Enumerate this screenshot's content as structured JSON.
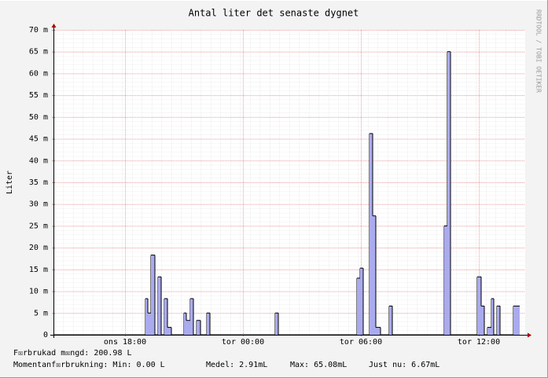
{
  "chart_data": {
    "type": "area",
    "title": "Antal liter det senaste dygnet",
    "y_label": "Liter",
    "watermark": "RRDTOOL / TOBI OETIKER",
    "step": true,
    "color": "#aaaaee",
    "line_color": "#000000",
    "grid": true,
    "xlim": [
      14.36,
      38.36
    ],
    "xticks": [
      {
        "value": 18,
        "label": "ons 18:00"
      },
      {
        "value": 24,
        "label": "tor 00:00"
      },
      {
        "value": 30,
        "label": "tor 06:00"
      },
      {
        "value": 36,
        "label": "tor 12:00"
      }
    ],
    "ylim": [
      0,
      70
    ],
    "yticks": [
      0,
      {
        "value": 5,
        "label": "5 m"
      },
      {
        "value": 10,
        "label": "10 m"
      },
      {
        "value": 15,
        "label": "15 m"
      },
      {
        "value": 20,
        "label": "20 m"
      },
      {
        "value": 25,
        "label": "25 m"
      },
      {
        "value": 30,
        "label": "30 m"
      },
      {
        "value": 35,
        "label": "35 m"
      },
      {
        "value": 40,
        "label": "40 m"
      },
      {
        "value": 45,
        "label": "45 m"
      },
      {
        "value": 50,
        "label": "50 m"
      },
      {
        "value": 55,
        "label": "55 m"
      },
      {
        "value": 60,
        "label": "60 m"
      },
      {
        "value": 65,
        "label": "65 m"
      },
      {
        "value": 70,
        "label": "70 m"
      }
    ],
    "x": [
      14.36,
      19.04,
      19.16,
      19.32,
      19.52,
      19.68,
      19.84,
      20.0,
      20.16,
      20.36,
      21.0,
      21.12,
      21.32,
      21.48,
      21.64,
      21.84,
      22.16,
      22.32,
      25.64,
      25.8,
      29.8,
      29.96,
      30.12,
      30.44,
      30.6,
      30.76,
      31.0,
      31.44,
      31.6,
      34.24,
      34.4,
      34.56,
      35.92,
      36.12,
      36.28,
      36.44,
      36.64,
      36.76,
      36.92,
      37.08,
      37.76,
      38.08
    ],
    "values": [
      0,
      8.3,
      5,
      18.3,
      0,
      13.3,
      0,
      8.3,
      1.7,
      0,
      5,
      3.3,
      8.3,
      0,
      3.3,
      0,
      5,
      0,
      5,
      0,
      13,
      15.3,
      0,
      46.2,
      27.3,
      1.7,
      0,
      6.6,
      0,
      25,
      65,
      0,
      13.3,
      6.6,
      0,
      1.7,
      8.3,
      0,
      6.6,
      0,
      6.6,
      null
    ],
    "legend": [
      [
        "F☒rbrukad m☒ngd: 200.98 L"
      ],
      [
        "Momentanf☒rbrukning: Min: 0.00 L",
        "Medel: 2.91mL",
        "Max: 65.08mL",
        "Just nu: 6.67mL"
      ]
    ]
  }
}
